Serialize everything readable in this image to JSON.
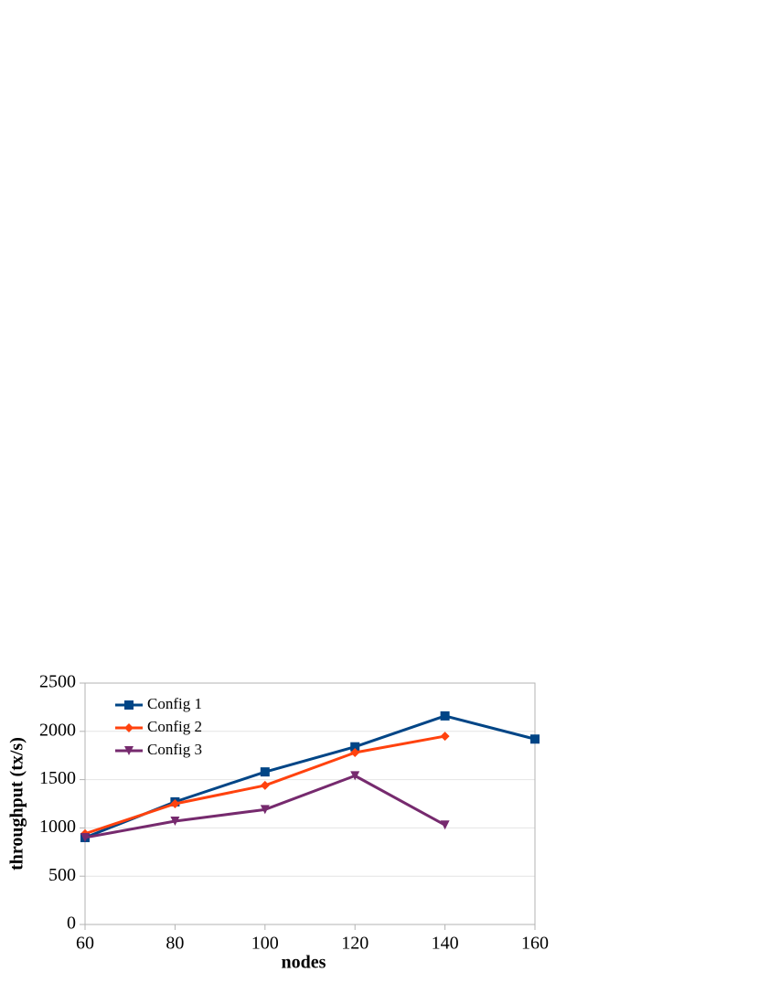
{
  "chart_data": {
    "type": "line",
    "x_label": "nodes",
    "y_label": "throughput (tx/s)",
    "x": [
      60,
      80,
      100,
      120,
      140,
      160
    ],
    "series": [
      {
        "name": "Config 1",
        "color": "#004586",
        "marker": "square",
        "values": [
          900,
          1270,
          1580,
          1840,
          2160,
          1920
        ]
      },
      {
        "name": "Config 2",
        "color": "#ff420e",
        "marker": "diamond",
        "values": [
          940,
          1250,
          1440,
          1780,
          1950,
          null
        ]
      },
      {
        "name": "Config 3",
        "color": "#762a6e",
        "marker": "triangle-down",
        "values": [
          900,
          1070,
          1190,
          1540,
          1030,
          null
        ]
      }
    ],
    "xlim": [
      60,
      160
    ],
    "xticks": [
      60,
      80,
      100,
      120,
      140,
      160
    ],
    "ylim": [
      0,
      2500
    ],
    "yticks": [
      0,
      500,
      1000,
      1500,
      2000,
      2500
    ],
    "grid": true,
    "legend": "upper left"
  }
}
